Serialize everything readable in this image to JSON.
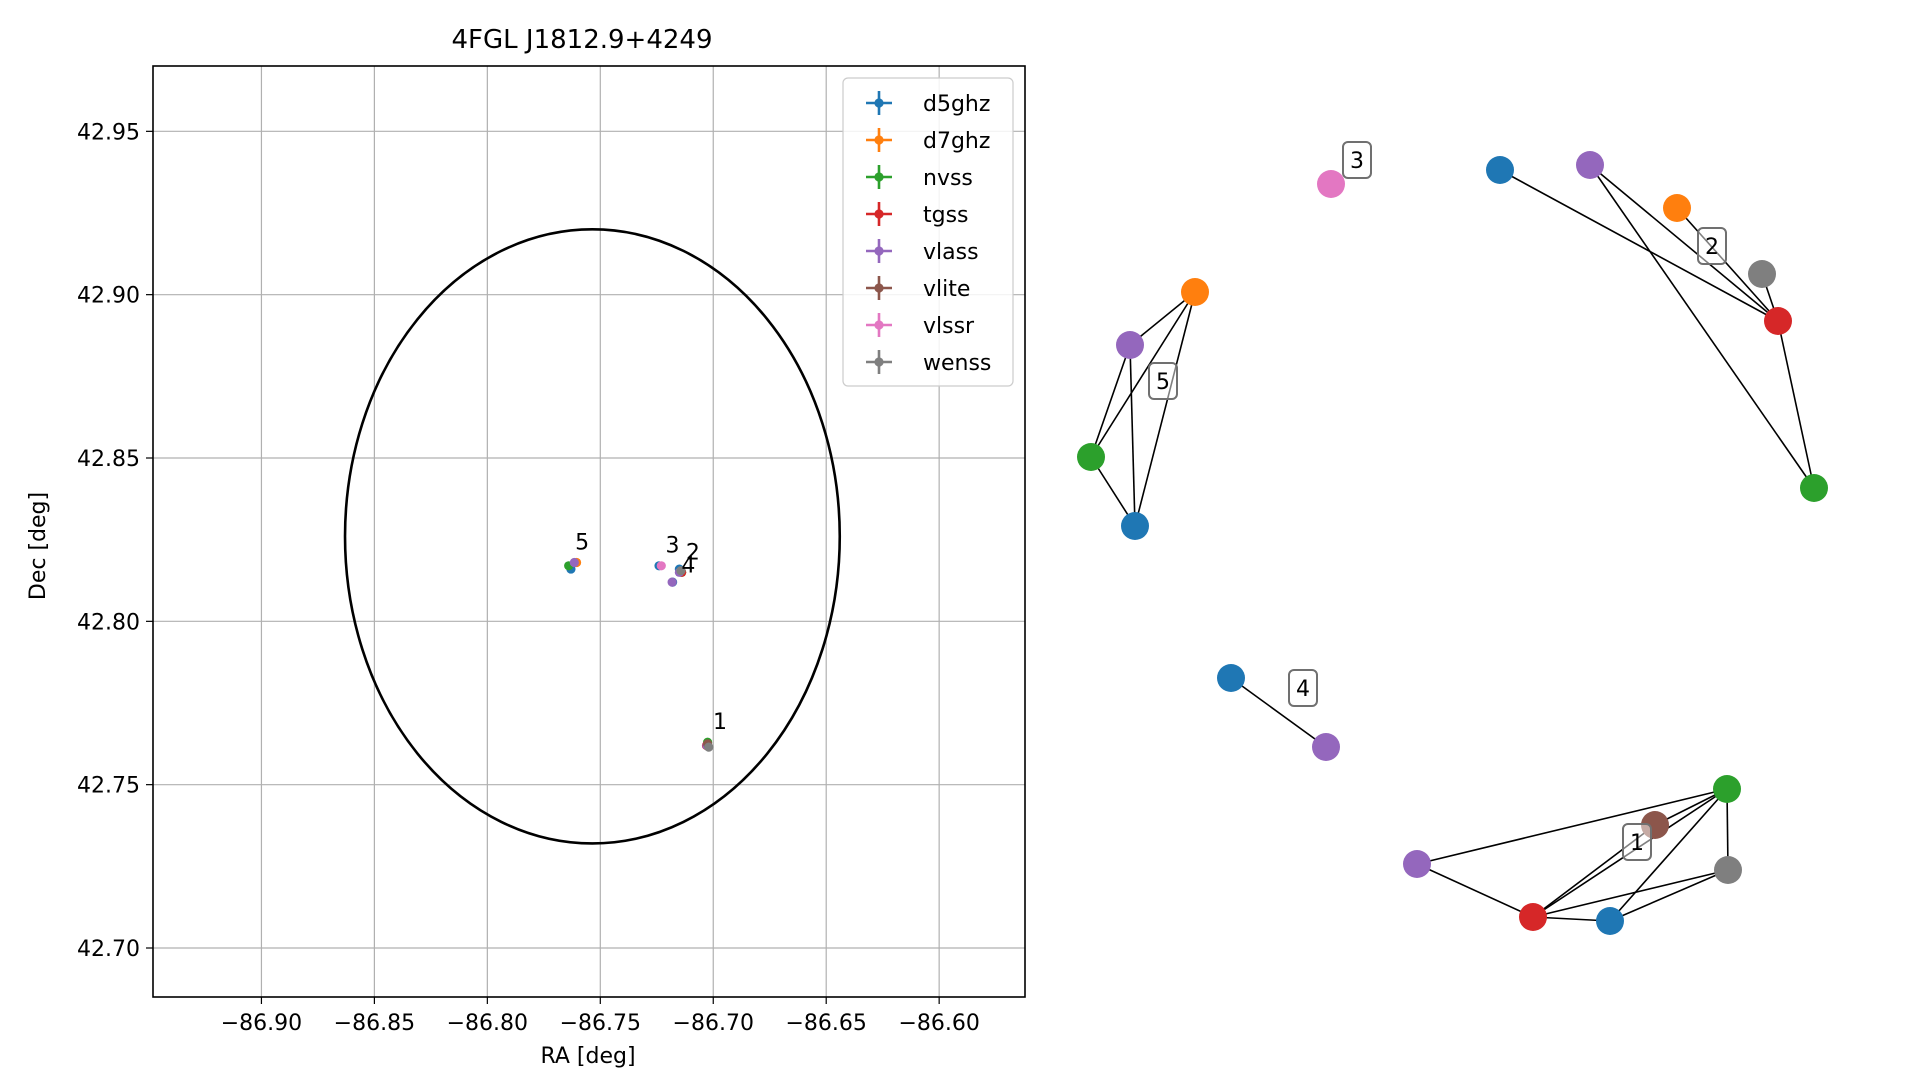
{
  "chart_data": [
    {
      "type": "scatter",
      "title": "4FGL J1812.9+4249",
      "xlabel": "RA [deg]",
      "ylabel": "Dec [deg]",
      "xlim": [
        -86.948,
        -86.562
      ],
      "ylim": [
        42.685,
        42.97
      ],
      "x_ticks": [
        -86.9,
        -86.85,
        -86.8,
        -86.75,
        -86.7,
        -86.65,
        -86.6
      ],
      "x_tick_labels": [
        "−86.90",
        "−86.85",
        "−86.80",
        "−86.75",
        "−86.70",
        "−86.65",
        "−86.60"
      ],
      "y_ticks": [
        42.7,
        42.75,
        42.8,
        42.85,
        42.9,
        42.95
      ],
      "y_tick_labels": [
        "42.70",
        "42.75",
        "42.80",
        "42.85",
        "42.90",
        "42.95"
      ],
      "grid": true,
      "legend_position": "top-right",
      "error_ellipse": {
        "center_ra": -86.7535,
        "center_dec": 42.826,
        "semi_ra": 0.1095,
        "semi_dec": 0.094
      },
      "series": [
        {
          "name": "d5ghz",
          "color": "#1f77b4",
          "points": [
            [
              -86.7025,
              42.762
            ],
            [
              -86.715,
              42.816
            ],
            [
              -86.718,
              42.812
            ],
            [
              -86.763,
              42.816
            ],
            [
              -86.724,
              42.817
            ]
          ]
        },
        {
          "name": "d7ghz",
          "color": "#ff7f0e",
          "points": [
            [
              -86.714,
              42.815
            ],
            [
              -86.7605,
              42.818
            ]
          ]
        },
        {
          "name": "nvss",
          "color": "#2ca02c",
          "points": [
            [
              -86.7025,
              42.763
            ],
            [
              -86.714,
              42.815
            ],
            [
              -86.764,
              42.817
            ]
          ]
        },
        {
          "name": "tgss",
          "color": "#d62728",
          "points": [
            [
              -86.703,
              42.762
            ],
            [
              -86.714,
              42.815
            ]
          ]
        },
        {
          "name": "vlass",
          "color": "#9467bd",
          "points": [
            [
              -86.7028,
              42.762
            ],
            [
              -86.715,
              42.815
            ],
            [
              -86.7182,
              42.812
            ],
            [
              -86.7615,
              42.818
            ]
          ]
        },
        {
          "name": "vlite",
          "color": "#8c564b",
          "points": [
            [
              -86.7025,
              42.7625
            ]
          ]
        },
        {
          "name": "vlssr",
          "color": "#e377c2",
          "points": [
            [
              -86.723,
              42.817
            ]
          ]
        },
        {
          "name": "wenss",
          "color": "#7f7f7f",
          "points": [
            [
              -86.702,
              42.7615
            ],
            [
              -86.7143,
              42.8155
            ]
          ]
        }
      ],
      "annotations": [
        {
          "text": "1",
          "ra": -86.701,
          "dec": 42.767
        },
        {
          "text": "2",
          "ra": -86.713,
          "dec": 42.819
        },
        {
          "text": "3",
          "ra": -86.722,
          "dec": 42.821
        },
        {
          "text": "4",
          "ra": -86.715,
          "dec": 42.815
        },
        {
          "text": "5",
          "ra": -86.762,
          "dec": 42.822
        }
      ]
    },
    {
      "type": "network-graph",
      "colors": {
        "d5ghz": "#1f77b4",
        "d7ghz": "#ff7f0e",
        "nvss": "#2ca02c",
        "tgss": "#d62728",
        "vlass": "#9467bd",
        "vlite": "#8c564b",
        "vlssr": "#e377c2",
        "wenss": "#7f7f7f"
      },
      "clusters": [
        {
          "label": "1",
          "nodes": [
            {
              "id": "c1_vlass",
              "catalog": "vlass"
            },
            {
              "id": "c1_tgss",
              "catalog": "tgss"
            },
            {
              "id": "c1_d5ghz",
              "catalog": "d5ghz"
            },
            {
              "id": "c1_vlite",
              "catalog": "vlite"
            },
            {
              "id": "c1_nvss",
              "catalog": "nvss"
            },
            {
              "id": "c1_wenss",
              "catalog": "wenss"
            }
          ],
          "edges": [
            [
              "c1_vlass",
              "c1_tgss"
            ],
            [
              "c1_vlass",
              "c1_nvss"
            ],
            [
              "c1_tgss",
              "c1_d5ghz"
            ],
            [
              "c1_tgss",
              "c1_vlite"
            ],
            [
              "c1_tgss",
              "c1_nvss"
            ],
            [
              "c1_tgss",
              "c1_wenss"
            ],
            [
              "c1_d5ghz",
              "c1_nvss"
            ],
            [
              "c1_d5ghz",
              "c1_wenss"
            ],
            [
              "c1_vlite",
              "c1_nvss"
            ],
            [
              "c1_nvss",
              "c1_wenss"
            ]
          ]
        },
        {
          "label": "2",
          "nodes": [
            {
              "id": "c2_d5ghz",
              "catalog": "d5ghz"
            },
            {
              "id": "c2_vlass",
              "catalog": "vlass"
            },
            {
              "id": "c2_d7ghz",
              "catalog": "d7ghz"
            },
            {
              "id": "c2_wenss",
              "catalog": "wenss"
            },
            {
              "id": "c2_tgss",
              "catalog": "tgss"
            },
            {
              "id": "c2_nvss",
              "catalog": "nvss"
            }
          ],
          "edges": [
            [
              "c2_d5ghz",
              "c2_tgss"
            ],
            [
              "c2_vlass",
              "c2_tgss"
            ],
            [
              "c2_d7ghz",
              "c2_tgss"
            ],
            [
              "c2_wenss",
              "c2_tgss"
            ],
            [
              "c2_nvss",
              "c2_tgss"
            ],
            [
              "c2_vlass",
              "c2_nvss"
            ]
          ]
        },
        {
          "label": "3",
          "nodes": [
            {
              "id": "c3_vlssr",
              "catalog": "vlssr"
            }
          ],
          "edges": []
        },
        {
          "label": "4",
          "nodes": [
            {
              "id": "c4_d5ghz",
              "catalog": "d5ghz"
            },
            {
              "id": "c4_vlass",
              "catalog": "vlass"
            }
          ],
          "edges": [
            [
              "c4_d5ghz",
              "c4_vlass"
            ]
          ]
        },
        {
          "label": "5",
          "nodes": [
            {
              "id": "c5_d7ghz",
              "catalog": "d7ghz"
            },
            {
              "id": "c5_vlass",
              "catalog": "vlass"
            },
            {
              "id": "c5_nvss",
              "catalog": "nvss"
            },
            {
              "id": "c5_d5ghz",
              "catalog": "d5ghz"
            }
          ],
          "edges": [
            [
              "c5_d7ghz",
              "c5_vlass"
            ],
            [
              "c5_d7ghz",
              "c5_nvss"
            ],
            [
              "c5_d7ghz",
              "c5_d5ghz"
            ],
            [
              "c5_vlass",
              "c5_nvss"
            ],
            [
              "c5_vlass",
              "c5_d5ghz"
            ],
            [
              "c5_nvss",
              "c5_d5ghz"
            ]
          ]
        }
      ]
    }
  ]
}
